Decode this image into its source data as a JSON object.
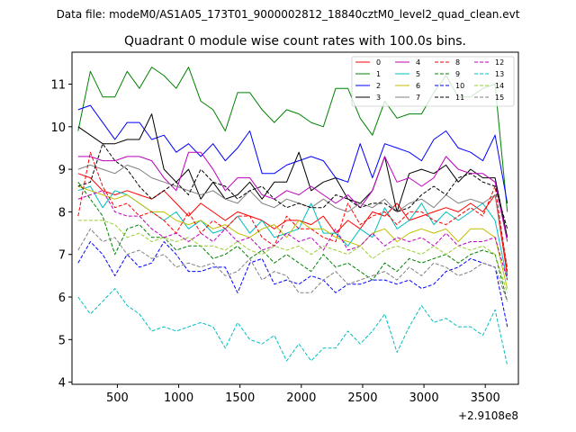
{
  "suptitle": "Data file: modeM0/AS1A05_173T01_9000002812_18840cztM0_level2_quad_clean.evt",
  "chart_data": {
    "type": "line",
    "title": "Quadrant 0 module wise count rates with 100.0s bins.",
    "xlabel": "",
    "ylabel": "",
    "x_offset_label": "+2.9108e8",
    "xlim": [
      130,
      3770
    ],
    "ylim": [
      3.95,
      11.75
    ],
    "xticks": [
      500,
      1000,
      1500,
      2000,
      2500,
      3000,
      3500
    ],
    "yticks": [
      4,
      5,
      6,
      7,
      8,
      9,
      10,
      11
    ],
    "legend_position": "top-right",
    "x": [
      180,
      280,
      380,
      480,
      580,
      680,
      780,
      880,
      980,
      1080,
      1180,
      1280,
      1380,
      1480,
      1580,
      1680,
      1780,
      1880,
      1980,
      2080,
      2180,
      2280,
      2380,
      2480,
      2580,
      2680,
      2780,
      2880,
      2980,
      3080,
      3180,
      3280,
      3380,
      3480,
      3580,
      3680
    ],
    "series": [
      {
        "name": "0",
        "color": "#ff0000",
        "dash": "solid",
        "values": [
          8.9,
          8.8,
          8.5,
          8.4,
          8.5,
          8.4,
          8.3,
          8.5,
          8.2,
          7.9,
          8.2,
          8.0,
          7.8,
          8.0,
          7.9,
          7.8,
          7.6,
          7.8,
          7.8,
          7.7,
          7.9,
          7.5,
          7.8,
          7.6,
          8.0,
          7.9,
          8.2,
          7.8,
          7.9,
          8.0,
          8.1,
          8.0,
          8.2,
          8.0,
          8.4,
          6.5
        ]
      },
      {
        "name": "1",
        "color": "#008000",
        "dash": "solid",
        "values": [
          9.9,
          11.3,
          10.7,
          10.7,
          11.3,
          10.9,
          11.4,
          11.2,
          10.9,
          11.4,
          10.6,
          10.4,
          9.9,
          10.8,
          10.8,
          10.4,
          10.1,
          10.4,
          10.3,
          10.1,
          10.0,
          10.9,
          10.9,
          10.2,
          9.8,
          10.6,
          10.2,
          10.3,
          10.3,
          10.8,
          11.2,
          10.7,
          10.7,
          10.9,
          11.0,
          8.0
        ]
      },
      {
        "name": "2",
        "color": "#0000ff",
        "dash": "solid",
        "values": [
          10.4,
          10.5,
          10.1,
          9.7,
          10.1,
          10.1,
          9.7,
          9.8,
          9.4,
          9.6,
          9.3,
          9.6,
          9.2,
          9.5,
          9.9,
          8.9,
          8.9,
          9.1,
          9.2,
          9.3,
          9.2,
          8.8,
          8.7,
          9.6,
          8.8,
          9.6,
          9.5,
          9.4,
          9.2,
          9.7,
          9.9,
          9.5,
          9.4,
          9.2,
          9.8,
          8.2
        ]
      },
      {
        "name": "3",
        "color": "#000000",
        "dash": "solid",
        "values": [
          10.0,
          9.8,
          9.6,
          9.6,
          9.7,
          9.7,
          10.3,
          9.0,
          8.7,
          9.0,
          8.3,
          8.7,
          8.3,
          8.4,
          8.7,
          8.3,
          8.7,
          8.7,
          9.4,
          8.5,
          8.7,
          8.8,
          8.3,
          8.2,
          8.5,
          9.3,
          8.0,
          8.9,
          9.0,
          8.9,
          9.1,
          8.7,
          9.0,
          8.8,
          8.8,
          7.4
        ]
      },
      {
        "name": "4",
        "color": "#bf00bf",
        "dash": "solid",
        "values": [
          9.3,
          9.3,
          9.2,
          9.2,
          9.3,
          9.3,
          9.2,
          8.8,
          8.5,
          9.4,
          9.4,
          9.0,
          8.5,
          8.8,
          8.8,
          8.4,
          8.3,
          8.5,
          8.4,
          8.6,
          8.4,
          8.2,
          8.4,
          8.1,
          8.5,
          9.3,
          8.7,
          8.8,
          8.6,
          8.8,
          9.3,
          9.0,
          8.9,
          8.9,
          8.7,
          7.3
        ]
      },
      {
        "name": "5",
        "color": "#00bfbf",
        "dash": "solid",
        "values": [
          8.5,
          8.6,
          8.1,
          8.5,
          8.4,
          8.2,
          8.0,
          7.8,
          8.0,
          7.6,
          7.8,
          7.5,
          7.6,
          7.9,
          7.5,
          7.8,
          7.4,
          7.5,
          7.6,
          8.2,
          7.5,
          7.5,
          7.2,
          7.6,
          7.4,
          8.1,
          7.6,
          7.8,
          8.2,
          7.7,
          8.0,
          7.8,
          8.0,
          8.2,
          7.8,
          6.4
        ]
      },
      {
        "name": "6",
        "color": "#bfbf00",
        "dash": "solid",
        "values": [
          8.6,
          8.5,
          8.4,
          8.3,
          8.4,
          8.2,
          8.0,
          8.0,
          7.8,
          7.7,
          7.8,
          7.6,
          7.7,
          7.5,
          7.4,
          7.6,
          7.7,
          7.4,
          7.8,
          7.6,
          7.6,
          7.4,
          7.3,
          7.2,
          7.5,
          7.6,
          7.3,
          7.5,
          7.6,
          7.5,
          7.6,
          7.3,
          7.6,
          7.6,
          7.4,
          6.2
        ]
      },
      {
        "name": "7",
        "color": "#808080",
        "dash": "solid",
        "values": [
          9.0,
          9.1,
          9.0,
          8.9,
          9.1,
          9.0,
          8.8,
          8.7,
          8.6,
          8.5,
          8.4,
          8.5,
          8.3,
          8.2,
          8.5,
          8.2,
          8.1,
          8.3,
          8.2,
          8.1,
          8.3,
          8.1,
          8.0,
          8.2,
          8.1,
          8.3,
          8.0,
          8.2,
          8.3,
          8.1,
          8.4,
          8.2,
          8.3,
          8.2,
          8.4,
          6.7
        ]
      },
      {
        "name": "8",
        "color": "#ff0000",
        "dash": "dashed",
        "values": [
          7.9,
          9.4,
          8.6,
          8.1,
          8.2,
          7.9,
          8.0,
          7.8,
          7.5,
          8.0,
          7.5,
          7.8,
          7.6,
          7.9,
          7.9,
          7.4,
          7.2,
          7.9,
          7.6,
          7.6,
          7.4,
          7.3,
          8.2,
          7.7,
          7.9,
          8.0,
          7.7,
          8.0,
          8.0,
          7.8,
          7.7,
          7.9,
          8.1,
          7.9,
          8.6,
          6.6
        ]
      },
      {
        "name": "9",
        "color": "#008000",
        "dash": "dashed",
        "values": [
          8.7,
          8.3,
          7.9,
          7.0,
          7.6,
          7.7,
          7.4,
          7.4,
          7.1,
          7.2,
          7.2,
          6.9,
          7.0,
          7.2,
          6.9,
          7.1,
          6.8,
          7.0,
          6.8,
          6.6,
          7.0,
          6.7,
          6.8,
          6.6,
          6.4,
          6.8,
          6.6,
          6.9,
          6.8,
          6.9,
          7.0,
          6.8,
          7.0,
          7.1,
          7.0,
          5.9
        ]
      },
      {
        "name": "10",
        "color": "#0000ff",
        "dash": "dashed",
        "values": [
          6.8,
          7.3,
          7.0,
          6.5,
          7.0,
          6.7,
          6.8,
          7.3,
          7.0,
          6.6,
          6.6,
          6.7,
          6.7,
          6.1,
          6.8,
          6.9,
          6.3,
          6.4,
          6.3,
          6.5,
          6.4,
          6.1,
          6.3,
          6.3,
          6.4,
          6.4,
          6.3,
          6.4,
          6.2,
          6.3,
          6.6,
          6.7,
          6.9,
          6.8,
          6.7,
          5.3
        ]
      },
      {
        "name": "11",
        "color": "#000000",
        "dash": "dashed",
        "values": [
          8.6,
          8.7,
          9.6,
          9.2,
          9.0,
          8.6,
          8.3,
          8.5,
          8.7,
          8.4,
          9.0,
          8.7,
          8.6,
          8.3,
          8.5,
          8.6,
          8.3,
          8.1,
          8.2,
          8.1,
          8.1,
          8.4,
          8.3,
          8.1,
          8.2,
          8.2,
          8.0,
          8.1,
          8.4,
          8.6,
          8.4,
          8.8,
          8.9,
          8.7,
          8.6,
          7.6
        ]
      },
      {
        "name": "12",
        "color": "#bf00bf",
        "dash": "dashed",
        "values": [
          8.3,
          8.4,
          8.5,
          8.0,
          7.9,
          7.9,
          7.6,
          7.4,
          7.5,
          7.3,
          7.5,
          7.3,
          7.6,
          7.3,
          7.4,
          7.1,
          7.2,
          7.5,
          7.3,
          7.4,
          7.1,
          7.6,
          7.1,
          7.2,
          7.5,
          7.2,
          7.4,
          7.3,
          7.4,
          7.2,
          7.5,
          7.2,
          7.3,
          7.3,
          7.4,
          6.4
        ]
      },
      {
        "name": "13",
        "color": "#00bfbf",
        "dash": "dashed",
        "values": [
          6.0,
          5.6,
          5.9,
          6.2,
          5.8,
          5.6,
          5.2,
          5.3,
          5.2,
          5.3,
          5.4,
          5.3,
          4.8,
          5.4,
          5.0,
          4.9,
          5.1,
          4.5,
          4.9,
          4.5,
          4.8,
          4.8,
          5.2,
          4.9,
          5.2,
          5.6,
          4.7,
          5.3,
          5.8,
          5.4,
          5.5,
          5.3,
          5.3,
          5.1,
          5.7,
          4.4
        ]
      },
      {
        "name": "14",
        "color": "#9acd32",
        "dash": "dashed",
        "values": [
          7.8,
          7.8,
          7.8,
          7.7,
          7.4,
          7.5,
          7.3,
          7.4,
          7.3,
          7.4,
          7.2,
          7.2,
          7.1,
          7.3,
          7.1,
          7.0,
          7.2,
          7.1,
          7.2,
          7.0,
          7.2,
          7.1,
          7.0,
          7.2,
          6.9,
          7.1,
          7.2,
          7.1,
          7.0,
          7.2,
          7.0,
          7.2,
          7.1,
          7.2,
          7.0,
          6.1
        ]
      },
      {
        "name": "15",
        "color": "#808080",
        "dash": "dashed",
        "values": [
          7.1,
          7.6,
          7.3,
          7.4,
          7.0,
          7.1,
          6.9,
          7.0,
          6.7,
          6.8,
          6.7,
          6.8,
          6.5,
          6.6,
          6.9,
          6.4,
          6.6,
          6.5,
          6.1,
          6.1,
          6.4,
          6.6,
          6.3,
          6.4,
          6.5,
          6.6,
          6.4,
          6.7,
          6.5,
          6.8,
          6.7,
          6.5,
          6.6,
          6.8,
          6.7,
          5.9
        ]
      }
    ]
  }
}
